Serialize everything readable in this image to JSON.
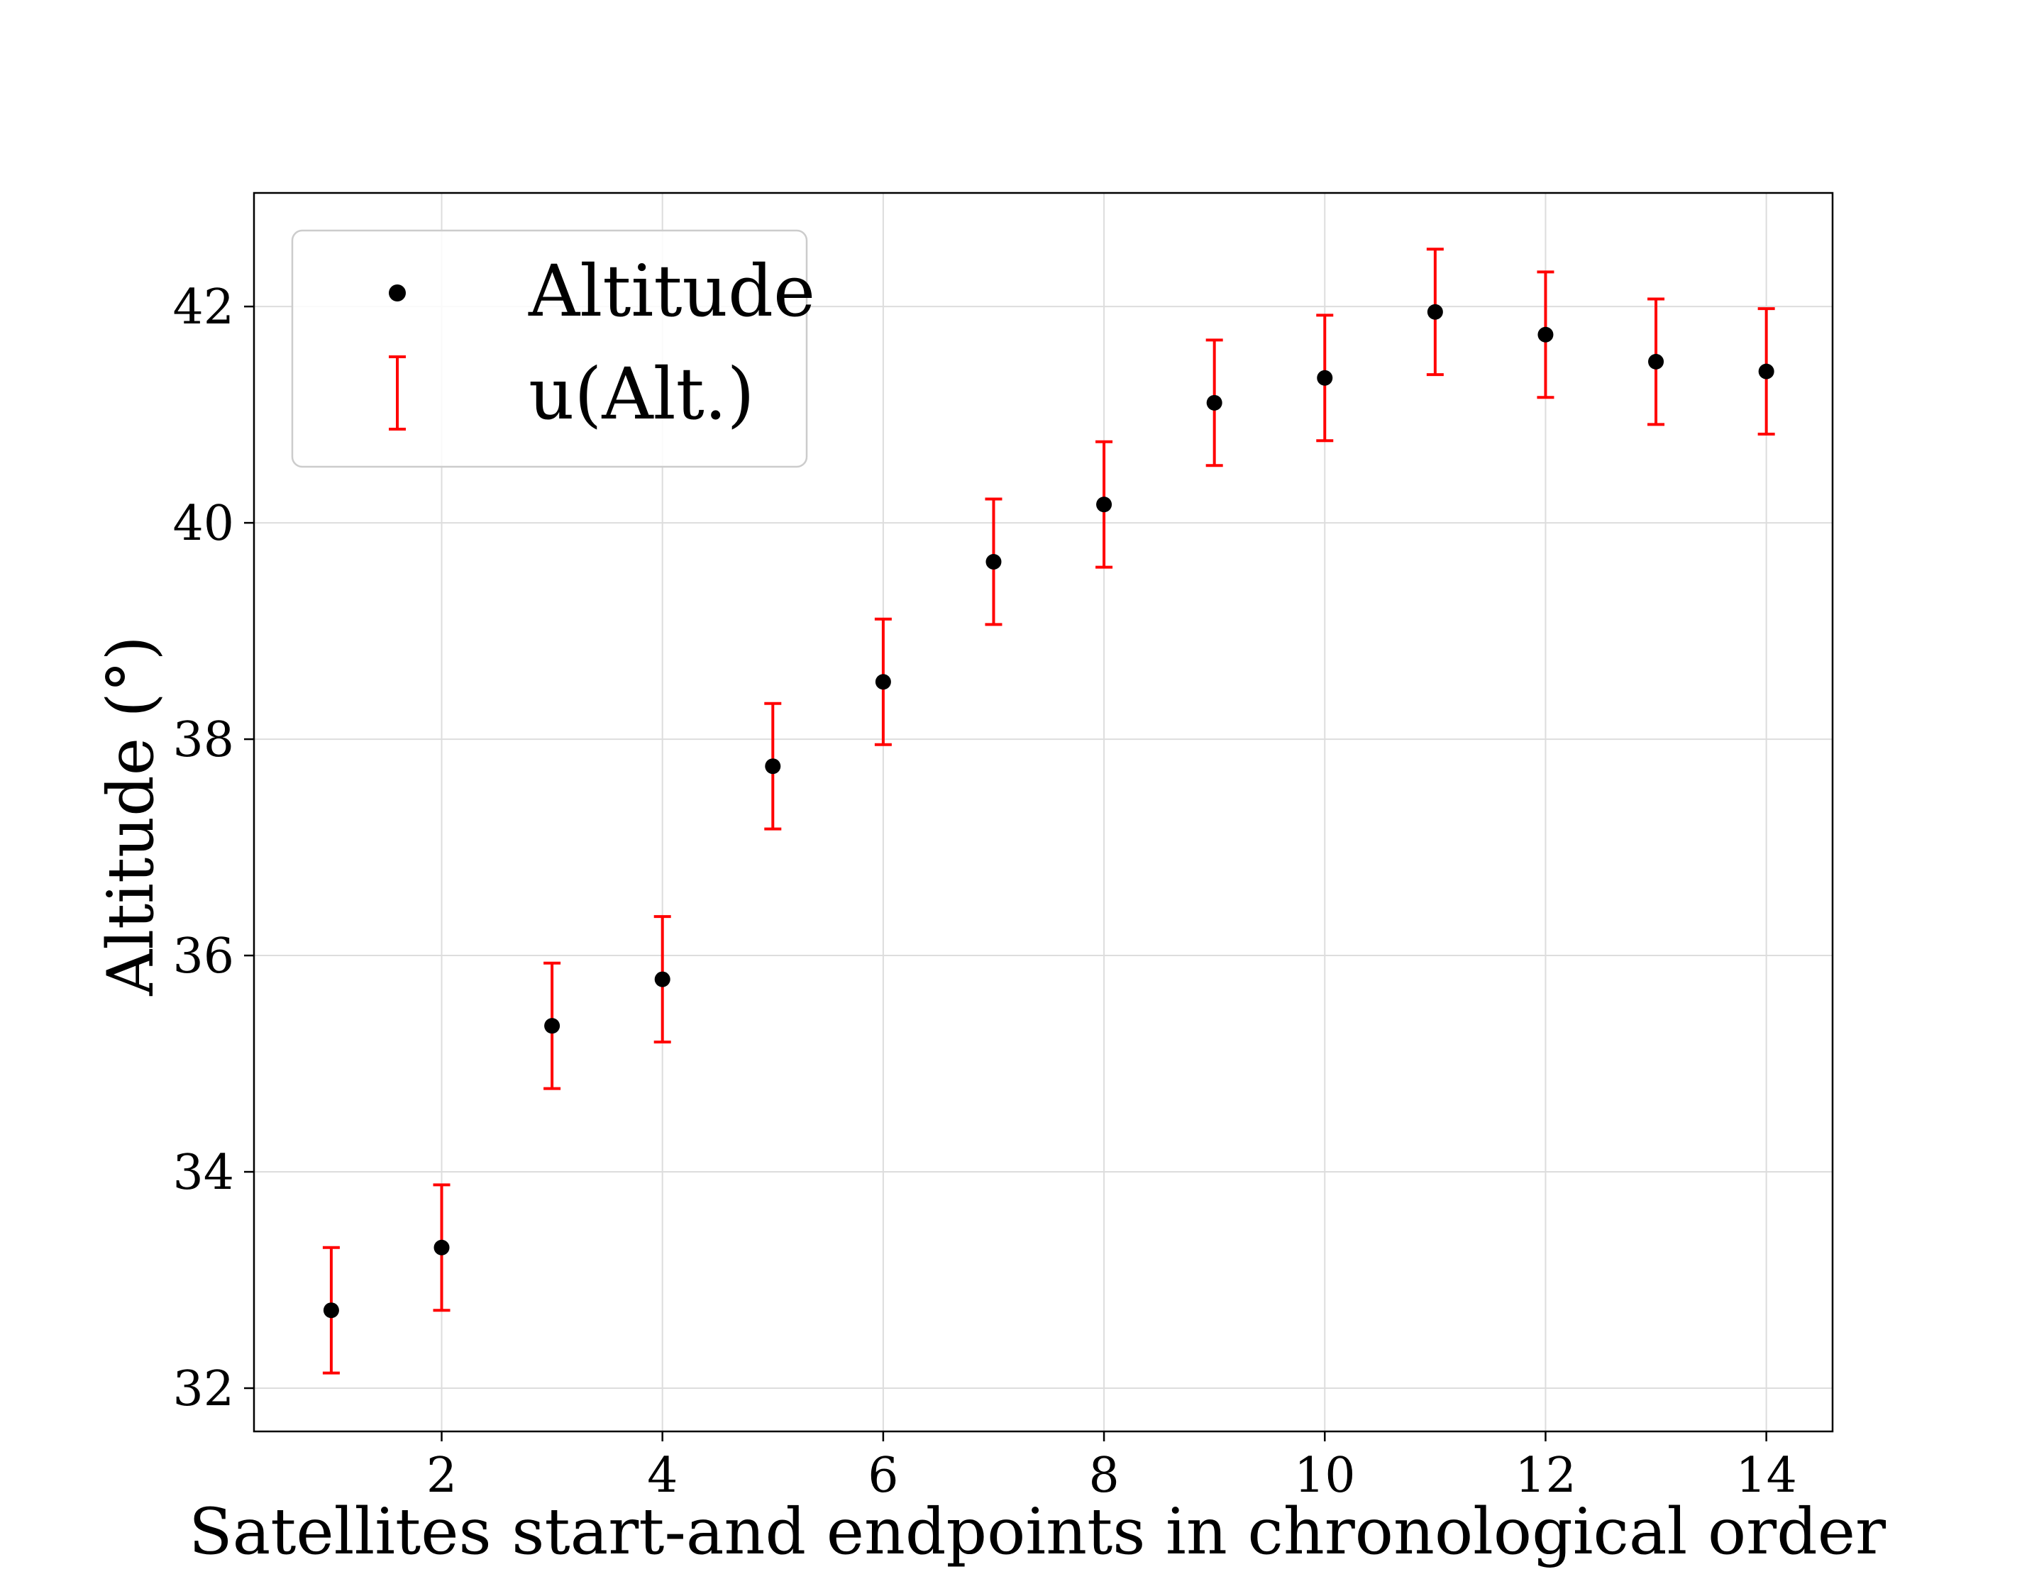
{
  "chart_data": {
    "type": "scatter",
    "title": "",
    "xlabel": "Satellites start-and endpoints in chronological order",
    "ylabel": "Altitude (°)",
    "xlim": [
      0.3,
      14.6
    ],
    "ylim": [
      31.6,
      43.05
    ],
    "xticks": [
      2,
      4,
      6,
      8,
      10,
      12,
      14
    ],
    "yticks": [
      32,
      34,
      36,
      38,
      40,
      42
    ],
    "grid": true,
    "legend_position": "top-left",
    "series": [
      {
        "name": "Altitude",
        "kind": "points",
        "color": "#000000",
        "x": [
          1,
          2,
          3,
          4,
          5,
          6,
          7,
          8,
          9,
          10,
          11,
          12,
          13,
          14
        ],
        "y": [
          32.72,
          33.3,
          35.35,
          35.78,
          37.75,
          38.53,
          39.64,
          40.17,
          41.11,
          41.34,
          41.95,
          41.74,
          41.49,
          41.4
        ]
      },
      {
        "name": "u(Alt.)",
        "kind": "errorbars",
        "color": "#ff0000",
        "error": [
          0.58,
          0.58,
          0.58,
          0.58,
          0.58,
          0.58,
          0.58,
          0.58,
          0.58,
          0.58,
          0.58,
          0.58,
          0.58,
          0.58
        ]
      }
    ]
  }
}
